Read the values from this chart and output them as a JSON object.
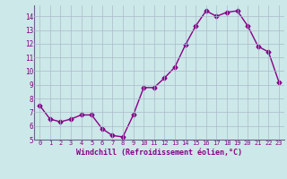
{
  "x": [
    0,
    1,
    2,
    3,
    4,
    5,
    6,
    7,
    8,
    9,
    10,
    11,
    12,
    13,
    14,
    15,
    16,
    17,
    18,
    19,
    20,
    21,
    22,
    23
  ],
  "y": [
    7.5,
    6.5,
    6.3,
    6.5,
    6.8,
    6.8,
    5.8,
    5.3,
    5.2,
    6.8,
    8.8,
    8.8,
    9.5,
    10.3,
    11.9,
    13.3,
    14.4,
    14.0,
    14.3,
    14.4,
    13.3,
    11.8,
    11.4,
    9.2
  ],
  "line_color": "#880088",
  "marker": "D",
  "marker_size": 2.5,
  "line_width": 1.0,
  "bg_color": "#cce8e8",
  "grid_color": "#aabbcc",
  "xlabel": "Windchill (Refroidissement éolien,°C)",
  "xlabel_color": "#880088",
  "tick_color": "#880088",
  "ylim": [
    5,
    14.8
  ],
  "xlim": [
    -0.5,
    23.5
  ],
  "yticks": [
    5,
    6,
    7,
    8,
    9,
    10,
    11,
    12,
    13,
    14
  ],
  "xticks": [
    0,
    1,
    2,
    3,
    4,
    5,
    6,
    7,
    8,
    9,
    10,
    11,
    12,
    13,
    14,
    15,
    16,
    17,
    18,
    19,
    20,
    21,
    22,
    23
  ]
}
